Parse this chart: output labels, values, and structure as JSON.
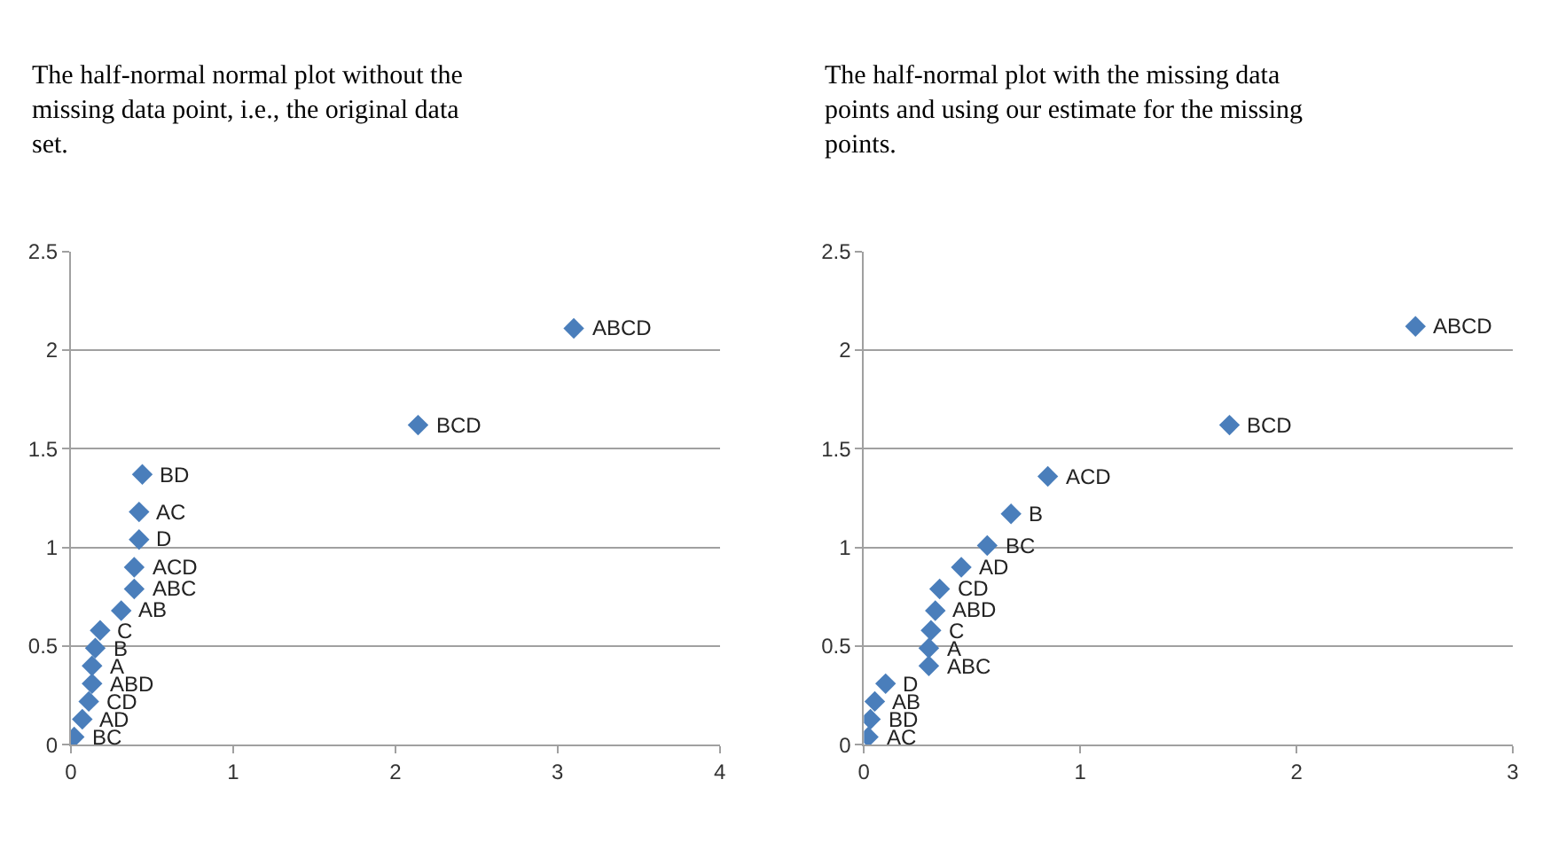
{
  "chart_data": [
    {
      "type": "scatter",
      "title": "The half-normal normal plot without the missing data point, i.e., the original data set.",
      "marker": "diamond",
      "grid": "y",
      "xlim": [
        0,
        4
      ],
      "xticks": [
        0,
        1,
        2,
        3,
        4
      ],
      "ylim": [
        0,
        2.5
      ],
      "yticks": [
        0,
        0.5,
        1,
        1.5,
        2,
        2.5
      ],
      "series": [
        {
          "color": "#4a7ebb",
          "x": [
            0.02,
            0.07,
            0.11,
            0.13,
            0.13,
            0.15,
            0.18,
            0.31,
            0.39,
            0.39,
            0.42,
            0.42,
            0.44,
            2.14,
            3.1
          ],
          "values": [
            0.04,
            0.13,
            0.22,
            0.31,
            0.4,
            0.49,
            0.58,
            0.68,
            0.79,
            0.9,
            1.04,
            1.18,
            1.37,
            1.62,
            2.11
          ]
        }
      ],
      "annotations": [
        {
          "text": "BC",
          "x": 0.02,
          "y": 0.04
        },
        {
          "text": "AD",
          "x": 0.07,
          "y": 0.13
        },
        {
          "text": "CD",
          "x": 0.11,
          "y": 0.22
        },
        {
          "text": "ABD",
          "x": 0.13,
          "y": 0.31
        },
        {
          "text": "A",
          "x": 0.13,
          "y": 0.4
        },
        {
          "text": "B",
          "x": 0.15,
          "y": 0.49
        },
        {
          "text": "C",
          "x": 0.18,
          "y": 0.58
        },
        {
          "text": "AB",
          "x": 0.31,
          "y": 0.68
        },
        {
          "text": "ABC",
          "x": 0.39,
          "y": 0.79
        },
        {
          "text": "ACD",
          "x": 0.39,
          "y": 0.9
        },
        {
          "text": "D",
          "x": 0.42,
          "y": 1.04
        },
        {
          "text": "AC",
          "x": 0.42,
          "y": 1.18
        },
        {
          "text": "BD",
          "x": 0.44,
          "y": 1.37
        },
        {
          "text": "BCD",
          "x": 2.14,
          "y": 1.62
        },
        {
          "text": "ABCD",
          "x": 3.1,
          "y": 2.11
        }
      ]
    },
    {
      "type": "scatter",
      "title": "The half-normal plot with the missing data points and using our estimate for the missing points.",
      "marker": "diamond",
      "grid": "y",
      "xlim": [
        0,
        3
      ],
      "xticks": [
        0,
        1,
        2,
        3
      ],
      "ylim": [
        0,
        2.5
      ],
      "yticks": [
        0,
        0.5,
        1,
        1.5,
        2,
        2.5
      ],
      "series": [
        {
          "color": "#4a7ebb",
          "x": [
            0.02,
            0.03,
            0.05,
            0.1,
            0.3,
            0.3,
            0.31,
            0.33,
            0.35,
            0.45,
            0.57,
            0.68,
            0.85,
            1.69,
            2.55
          ],
          "values": [
            0.04,
            0.13,
            0.22,
            0.31,
            0.4,
            0.49,
            0.58,
            0.68,
            0.79,
            0.9,
            1.01,
            1.17,
            1.36,
            1.62,
            2.12
          ]
        }
      ],
      "annotations": [
        {
          "text": "AC",
          "x": 0.02,
          "y": 0.04
        },
        {
          "text": "BD",
          "x": 0.03,
          "y": 0.13
        },
        {
          "text": "AB",
          "x": 0.05,
          "y": 0.22
        },
        {
          "text": "D",
          "x": 0.1,
          "y": 0.31
        },
        {
          "text": "ABC",
          "x": 0.3,
          "y": 0.4
        },
        {
          "text": "A",
          "x": 0.3,
          "y": 0.49
        },
        {
          "text": "C",
          "x": 0.31,
          "y": 0.58
        },
        {
          "text": "ABD",
          "x": 0.33,
          "y": 0.68
        },
        {
          "text": "CD",
          "x": 0.35,
          "y": 0.79
        },
        {
          "text": "AD",
          "x": 0.45,
          "y": 0.9
        },
        {
          "text": "BC",
          "x": 0.57,
          "y": 1.01
        },
        {
          "text": "B",
          "x": 0.68,
          "y": 1.17
        },
        {
          "text": "ACD",
          "x": 0.85,
          "y": 1.36
        },
        {
          "text": "BCD",
          "x": 1.69,
          "y": 1.62
        },
        {
          "text": "ABCD",
          "x": 2.55,
          "y": 2.12
        }
      ]
    }
  ]
}
